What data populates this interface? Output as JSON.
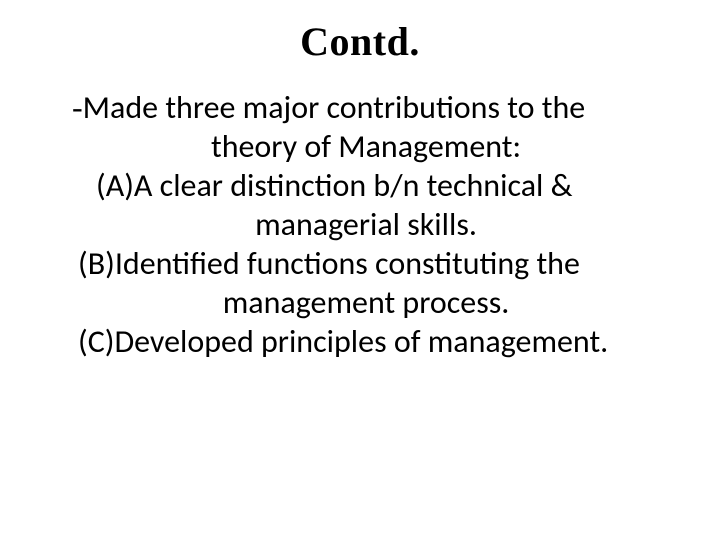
{
  "title": "Contd.",
  "body": {
    "intro_line1_dash": "-",
    "intro_line1_rest": "Made three major contributions to the",
    "intro_line2": "theory of Management:",
    "itemA_line1": "(A)A clear distinction b/n technical &",
    "itemA_line2": "managerial skills.",
    "itemB_line1": "(B)Identified functions constituting the",
    "itemB_line2": "management process.",
    "itemC_line1": "(C)Developed principles of management."
  },
  "colors": {
    "background": "#ffffff",
    "text": "#000000"
  },
  "fonts": {
    "title_family": "Times New Roman",
    "body_family": "Calibri",
    "title_size_pt": 40,
    "body_size_pt": 32
  }
}
